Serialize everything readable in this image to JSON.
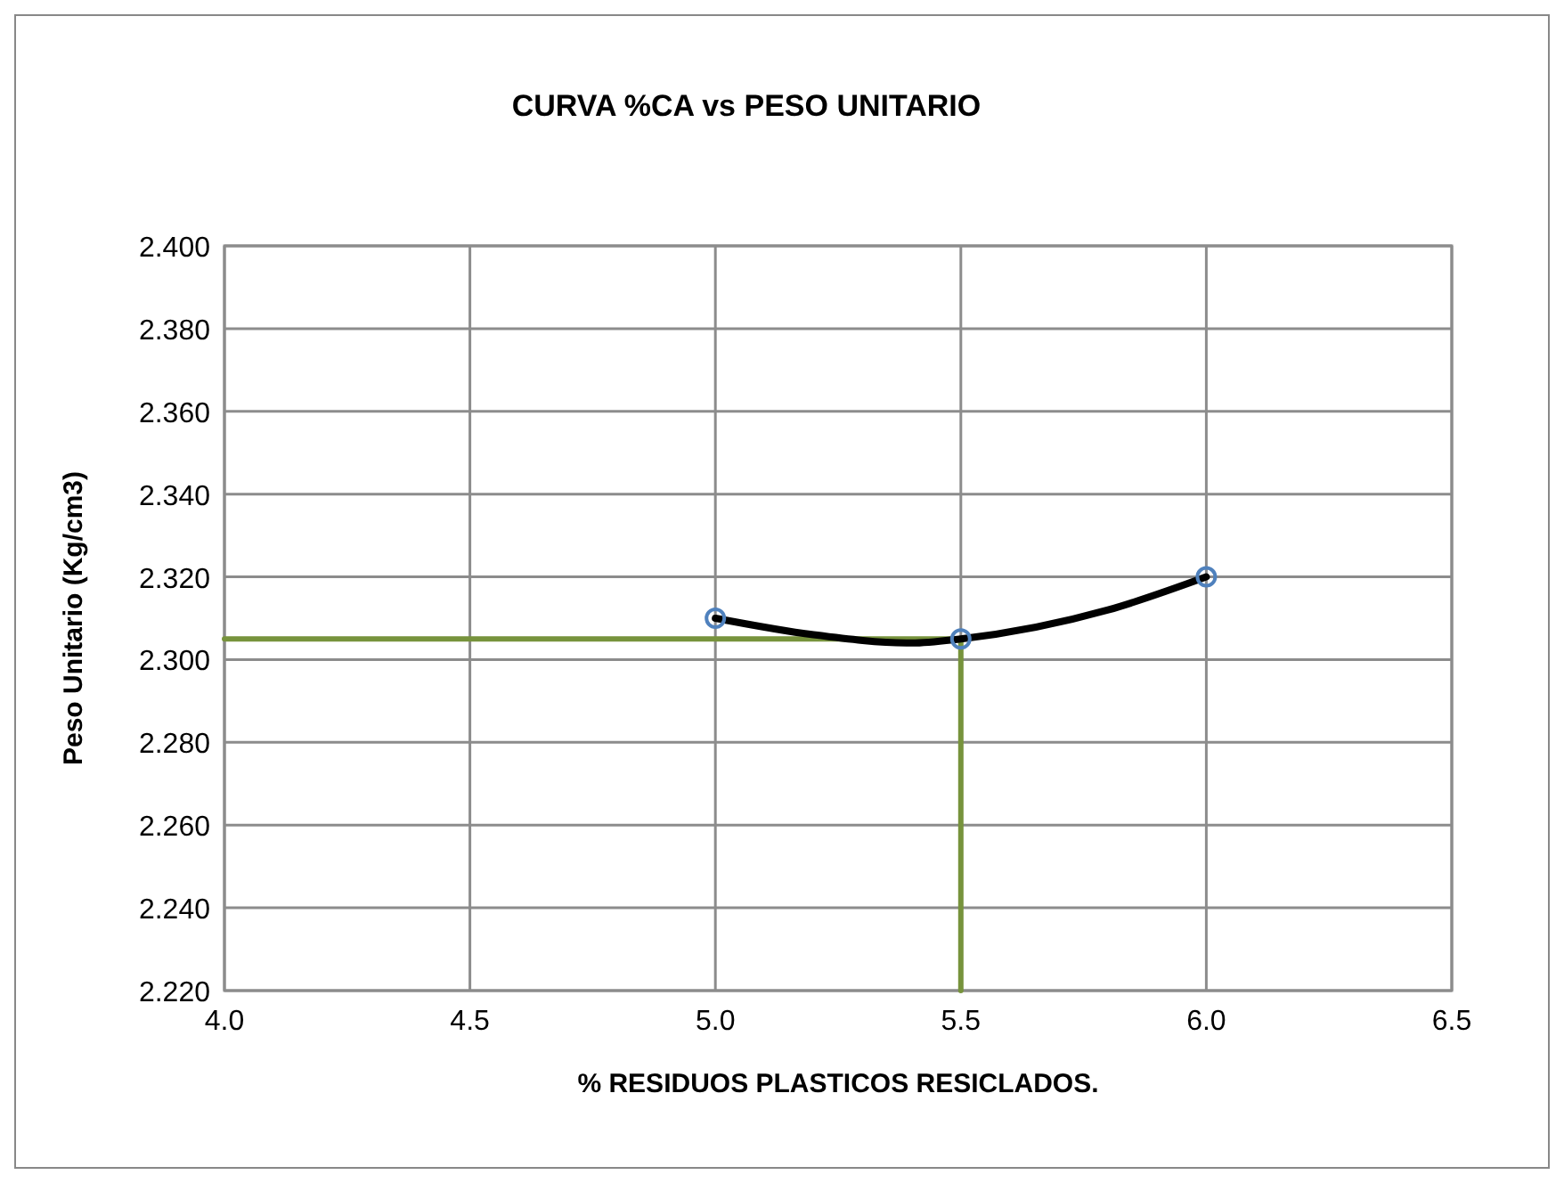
{
  "chart_data": {
    "type": "scatter",
    "title": "CURVA %CA vs PESO UNITARIO",
    "xlabel": "% RESIDUOS PLASTICOS RESICLADOS.",
    "ylabel": "Peso Unitario (Kg/cm3)",
    "xlim": [
      4.0,
      6.5
    ],
    "xticks": [
      {
        "value": 4,
        "label": "4.0"
      },
      {
        "value": 4.5,
        "label": "4.5"
      },
      {
        "value": 5,
        "label": "5.0"
      },
      {
        "value": 5.5,
        "label": "5.5"
      },
      {
        "value": 6,
        "label": "6.0"
      },
      {
        "value": 6.5,
        "label": "6.5"
      }
    ],
    "ylim": [
      2.22,
      2.4
    ],
    "yticks": [
      {
        "value": 2.22,
        "label": "2.220"
      },
      {
        "value": 2.24,
        "label": "2.240"
      },
      {
        "value": 2.26,
        "label": "2.260"
      },
      {
        "value": 2.28,
        "label": "2.280"
      },
      {
        "value": 2.3,
        "label": "2.300"
      },
      {
        "value": 2.32,
        "label": "2.320"
      },
      {
        "value": 2.34,
        "label": "2.340"
      },
      {
        "value": 2.36,
        "label": "2.360"
      },
      {
        "value": 2.38,
        "label": "2.380"
      },
      {
        "value": 2.4,
        "label": "2.400"
      }
    ],
    "grid": true,
    "series": [
      {
        "type": "line",
        "color": "#77933c",
        "x": [
          4.0,
          5.5,
          5.5
        ],
        "values": [
          2.305,
          2.305,
          2.22
        ],
        "marker": "none"
      },
      {
        "type": "line",
        "color": "#000000",
        "x": [
          5.0,
          5.2,
          5.4,
          5.5,
          5.8,
          6.0
        ],
        "values": [
          2.31,
          2.306,
          2.304,
          2.305,
          2.312,
          2.32
        ],
        "marker": "none"
      },
      {
        "type": "scatter",
        "color": "#4f81bd",
        "x": [
          5.0,
          5.5,
          6.0
        ],
        "values": [
          2.31,
          2.305,
          2.32
        ],
        "marker": "circle"
      }
    ]
  }
}
